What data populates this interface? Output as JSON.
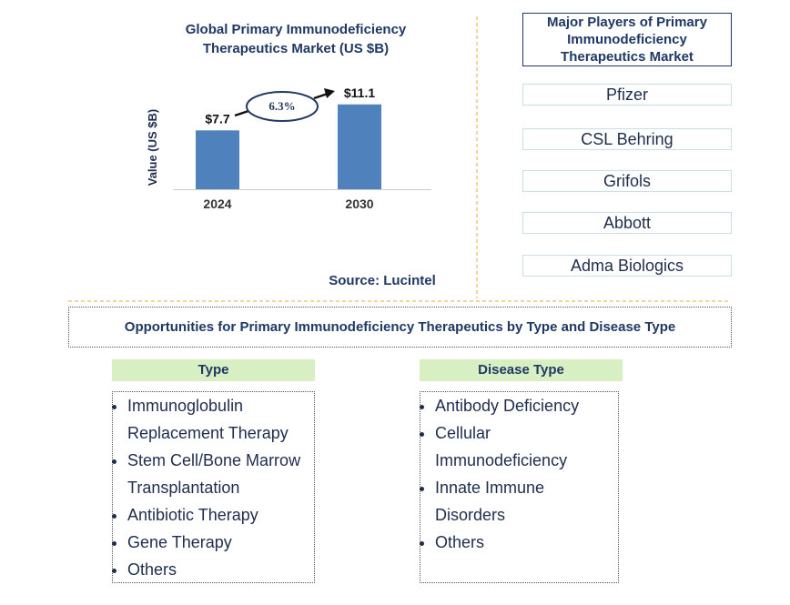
{
  "chart_data": {
    "type": "bar",
    "title": "Global Primary Immunodeficiency Therapeutics Market (US $B)",
    "y_label": "Value (US $B)",
    "categories": [
      "2024",
      "2030"
    ],
    "values": [
      7.7,
      11.1
    ],
    "value_labels": [
      "$7.7",
      "$11.1"
    ],
    "color": "#4f81bd",
    "annotation": "6.3%",
    "source": "Source: Lucintel"
  },
  "players": {
    "title": "Major Players of Primary Immunodeficiency Therapeutics Market",
    "items": [
      "Pfizer",
      "CSL Behring",
      "Grifols",
      "Abbott",
      "Adma Biologics"
    ]
  },
  "opportunities": {
    "title": "Opportunities for Primary Immunodeficiency Therapeutics by Type and Disease Type",
    "columns": [
      {
        "header": "Type",
        "items": [
          "Immunoglobulin Replacement Therapy",
          "Stem Cell/Bone Marrow Transplantation",
          "Antibiotic Therapy",
          "Gene Therapy",
          "Others"
        ]
      },
      {
        "header": "Disease Type",
        "items": [
          "Antibody Deficiency",
          "Cellular Immunodeficiency",
          "Innate Immune Disorders",
          "Others"
        ]
      }
    ]
  }
}
